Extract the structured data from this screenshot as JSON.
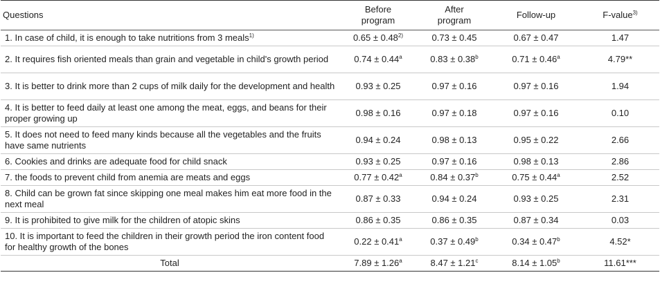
{
  "header": {
    "questions": "Questions",
    "before": "Before program",
    "after": "After program",
    "followup": "Follow-up",
    "fvalue": "F-value",
    "fvalue_sup": "3)"
  },
  "rows": [
    {
      "q": "1. In case of child, it is enough to take nutritions from 3 meals",
      "q_sup": "1)",
      "before": "0.65 ± 0.48",
      "before_sup": "2)",
      "after": "0.73 ± 0.45",
      "after_sup": "",
      "follow": "0.67 ± 0.47",
      "follow_sup": "",
      "f": "1.47"
    },
    {
      "q": "2. It requires fish oriented meals than grain and vegetable in child's growth period",
      "q_sup": "",
      "before": "0.74 ± 0.44",
      "before_sup": "a",
      "after": "0.83 ± 0.38",
      "after_sup": "b",
      "follow": "0.71 ± 0.46",
      "follow_sup": "a",
      "f": "4.79**"
    },
    {
      "q": "3. It is better to drink more than 2 cups of milk daily for the development and health",
      "q_sup": "",
      "before": "0.93 ± 0.25",
      "before_sup": "",
      "after": "0.97 ± 0.16",
      "after_sup": "",
      "follow": "0.97 ± 0.16",
      "follow_sup": "",
      "f": "1.94"
    },
    {
      "q": "4. It is better to feed daily at least one among the meat, eggs, and beans for their proper growing up",
      "q_sup": "",
      "before": "0.98 ± 0.16",
      "before_sup": "",
      "after": "0.97 ± 0.18",
      "after_sup": "",
      "follow": "0.97 ± 0.16",
      "follow_sup": "",
      "f": "0.10"
    },
    {
      "q": "5. It does not need to feed many kinds because all the vegetables and the fruits have same nutrients",
      "q_sup": "",
      "before": "0.94 ± 0.24",
      "before_sup": "",
      "after": "0.98 ± 0.13",
      "after_sup": "",
      "follow": "0.95 ± 0.22",
      "follow_sup": "",
      "f": "2.66"
    },
    {
      "q": "6. Cookies and drinks are adequate food for child snack",
      "q_sup": "",
      "before": "0.93 ± 0.25",
      "before_sup": "",
      "after": "0.97 ± 0.16",
      "after_sup": "",
      "follow": "0.98 ± 0.13",
      "follow_sup": "",
      "f": "2.86"
    },
    {
      "q": "7. the foods to prevent child from anemia are meats and eggs",
      "q_sup": "",
      "before": "0.77 ± 0.42",
      "before_sup": "a",
      "after": "0.84 ± 0.37",
      "after_sup": "b",
      "follow": "0.75 ± 0.44",
      "follow_sup": "a",
      "f": "2.52"
    },
    {
      "q": "8. Child can be grown fat since skipping one meal makes him eat more food in the next meal",
      "q_sup": "",
      "before": "0.87 ± 0.33",
      "before_sup": "",
      "after": "0.94 ± 0.24",
      "after_sup": "",
      "follow": "0.93 ± 0.25",
      "follow_sup": "",
      "f": "2.31"
    },
    {
      "q": "9. It is prohibited to give milk for the children of atopic skins",
      "q_sup": "",
      "before": "0.86 ± 0.35",
      "before_sup": "",
      "after": "0.86 ± 0.35",
      "after_sup": "",
      "follow": "0.87 ± 0.34",
      "follow_sup": "",
      "f": "0.03"
    },
    {
      "q": "10. It is important to feed the children in their growth period the iron content food for healthy growth of the bones",
      "q_sup": "",
      "before": "0.22 ± 0.41",
      "before_sup": "a",
      "after": "0.37 ± 0.49",
      "after_sup": "b",
      "follow": "0.34 ± 0.47",
      "follow_sup": "b",
      "f": "4.52*"
    }
  ],
  "total": {
    "label": "Total",
    "before": "7.89 ± 1.26",
    "before_sup": "a",
    "after": "8.47 ± 1.21",
    "after_sup": "c",
    "follow": "8.14 ± 1.05",
    "follow_sup": "b",
    "f": "11.61***"
  }
}
